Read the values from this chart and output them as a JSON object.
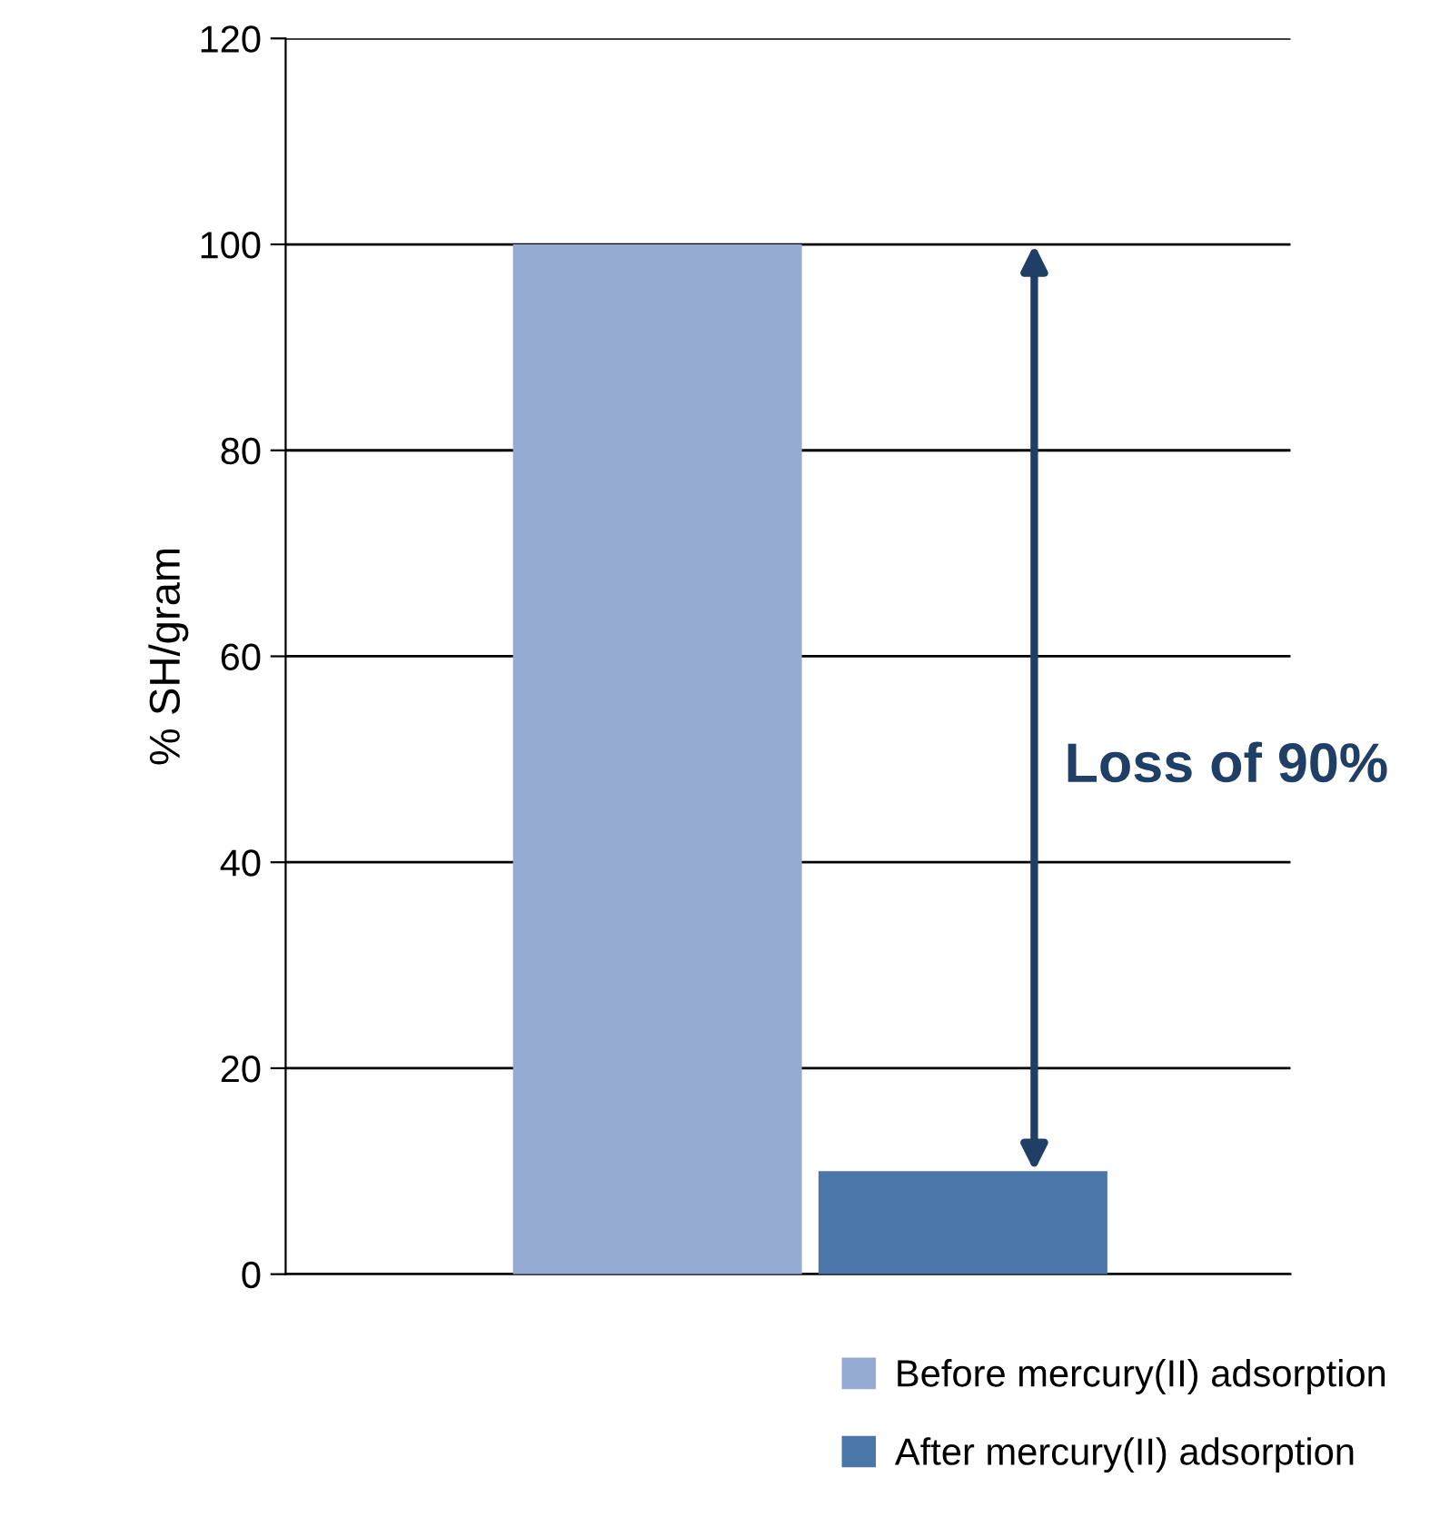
{
  "chart_data": {
    "type": "bar",
    "categories": [
      null
    ],
    "series": [
      {
        "name": "Before mercury(II) adsorption",
        "color": "#95abd3",
        "values": [
          100
        ]
      },
      {
        "name": "After mercury(II) adsorption",
        "color": "#4a76aa",
        "values": [
          10
        ]
      }
    ],
    "ylabel": "% SH/gram",
    "ylim": [
      0,
      120
    ],
    "yticks": [
      0,
      20,
      40,
      60,
      80,
      100,
      120
    ],
    "grid": "y",
    "legend": "bottom",
    "annotations": [
      "Loss of 90%"
    ]
  }
}
